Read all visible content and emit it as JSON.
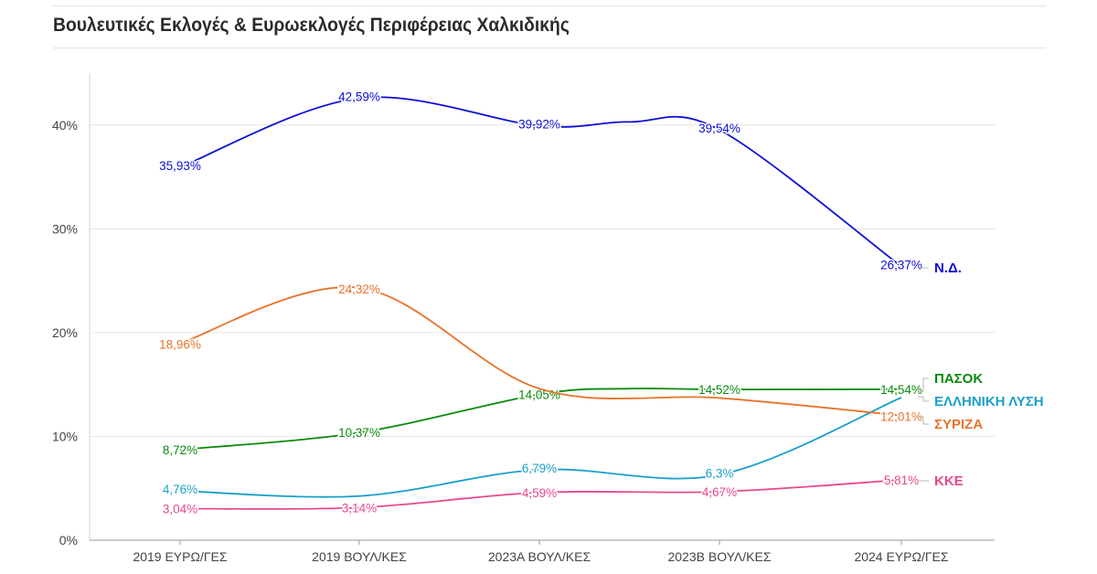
{
  "title": "Βουλευτικές Εκλογές & Ευρωεκλογές Περιφέρειας Χαλκιδικής",
  "chart_data": {
    "type": "line",
    "title": "Βουλευτικές Εκλογές & Ευρωεκλογές Περιφέρειας Χαλκιδικής",
    "categories": [
      "2019 ΕΥΡΩ/ΓΕΣ",
      "2019 ΒΟΥΛ/ΚΕΣ",
      "2023Α ΒΟΥΛ/ΚΕΣ",
      "2023Β ΒΟΥΛ/ΚΕΣ",
      "2024 ΕΥΡΩ/ΓΕΣ"
    ],
    "ylim": [
      0,
      45
    ],
    "yticks": [
      0,
      10,
      20,
      30,
      40
    ],
    "ytick_labels": [
      "0%",
      "10%",
      "20%",
      "30%",
      "40%"
    ],
    "grid": true,
    "legend": "end-of-line labels",
    "series": [
      {
        "name": "Ν.Δ.",
        "color": "#0d0dd6",
        "values": [
          35.93,
          42.59,
          39.92,
          39.54,
          26.37
        ],
        "labels": [
          "35,93%",
          "42,59%",
          "39,92%",
          "39,54%",
          "26,37%"
        ]
      },
      {
        "name": "ΠΑΣΟΚ",
        "color": "#0b8a0b",
        "values": [
          8.72,
          10.37,
          14.05,
          14.52,
          14.54
        ],
        "labels": [
          "8,72%",
          "10,37%",
          "14,05%",
          "14,52%",
          "14,54%"
        ]
      },
      {
        "name": "ΕΛΛΗΝΙΚΗ ΛΥΣΗ",
        "color": "#1a9fc9",
        "values": [
          4.76,
          null,
          6.79,
          6.3,
          null
        ],
        "labels": [
          "4,76%",
          "",
          "6,79%",
          "6,3%",
          ""
        ]
      },
      {
        "name": "ΣΥΡΙΖΑ",
        "color": "#e8732a",
        "values": [
          18.96,
          24.32,
          14.2,
          13.7,
          12.01
        ],
        "labels": [
          "18,96%",
          "24,32%",
          "",
          "",
          "12,01%"
        ]
      },
      {
        "name": "ΚΚΕ",
        "color": "#e8488a",
        "values": [
          3.04,
          3.14,
          4.59,
          4.67,
          5.81
        ],
        "labels": [
          "3,04%",
          "3,14%",
          "4,59%",
          "4,67%",
          "5,81%"
        ]
      }
    ]
  }
}
